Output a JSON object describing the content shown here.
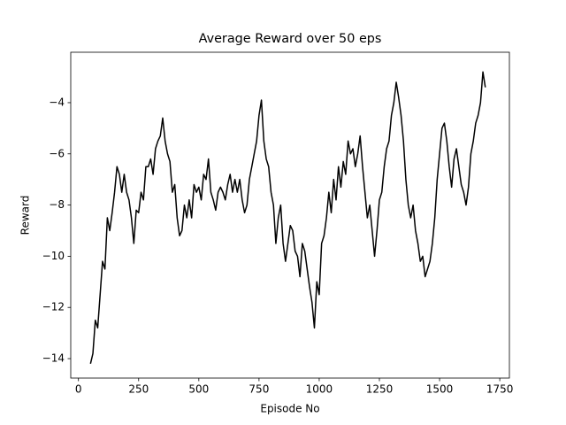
{
  "chart_data": {
    "type": "line",
    "title": "Average Reward over 50 eps",
    "xlabel": "Episode No",
    "ylabel": "Reward",
    "x": [
      50,
      60,
      70,
      80,
      90,
      100,
      110,
      120,
      130,
      140,
      150,
      160,
      170,
      180,
      190,
      200,
      210,
      220,
      230,
      240,
      250,
      260,
      270,
      280,
      290,
      300,
      310,
      320,
      330,
      340,
      350,
      360,
      370,
      380,
      390,
      400,
      410,
      420,
      430,
      440,
      450,
      460,
      470,
      480,
      490,
      500,
      510,
      520,
      530,
      540,
      550,
      560,
      570,
      580,
      590,
      600,
      610,
      620,
      630,
      640,
      650,
      660,
      670,
      680,
      690,
      700,
      710,
      720,
      730,
      740,
      750,
      760,
      770,
      780,
      790,
      800,
      810,
      820,
      830,
      840,
      850,
      860,
      870,
      880,
      890,
      900,
      910,
      920,
      930,
      940,
      950,
      960,
      970,
      980,
      990,
      1000,
      1010,
      1020,
      1030,
      1040,
      1050,
      1060,
      1070,
      1080,
      1090,
      1100,
      1110,
      1120,
      1130,
      1140,
      1150,
      1160,
      1170,
      1180,
      1190,
      1200,
      1210,
      1220,
      1230,
      1240,
      1250,
      1260,
      1270,
      1280,
      1290,
      1300,
      1310,
      1320,
      1330,
      1340,
      1350,
      1360,
      1370,
      1380,
      1390,
      1400,
      1410,
      1420,
      1430,
      1440,
      1450,
      1460,
      1470,
      1480,
      1490,
      1500,
      1510,
      1520,
      1530,
      1540,
      1550,
      1560,
      1570,
      1580,
      1590,
      1600,
      1610,
      1620,
      1630,
      1640,
      1650,
      1660,
      1670,
      1680,
      1690
    ],
    "series": [
      {
        "color": "#000000",
        "values": [
          -14.2,
          -13.8,
          -12.5,
          -12.8,
          -11.5,
          -10.2,
          -10.5,
          -8.5,
          -9.0,
          -8.3,
          -7.5,
          -6.5,
          -6.8,
          -7.5,
          -6.8,
          -7.5,
          -7.8,
          -8.5,
          -9.5,
          -8.2,
          -8.3,
          -7.5,
          -7.8,
          -6.5,
          -6.5,
          -6.2,
          -6.8,
          -5.8,
          -5.5,
          -5.3,
          -4.6,
          -5.5,
          -6.0,
          -6.3,
          -7.5,
          -7.2,
          -8.5,
          -9.2,
          -9.0,
          -8.0,
          -8.5,
          -7.8,
          -8.5,
          -7.2,
          -7.5,
          -7.3,
          -7.8,
          -6.8,
          -7.0,
          -6.2,
          -7.5,
          -7.8,
          -8.2,
          -7.5,
          -7.3,
          -7.5,
          -7.8,
          -7.2,
          -6.8,
          -7.5,
          -7.0,
          -7.5,
          -7.0,
          -7.8,
          -8.3,
          -8.0,
          -7.0,
          -6.5,
          -6.0,
          -5.5,
          -4.5,
          -3.9,
          -5.5,
          -6.2,
          -6.5,
          -7.5,
          -8.0,
          -9.5,
          -8.5,
          -8.0,
          -9.5,
          -10.2,
          -9.5,
          -8.8,
          -9.0,
          -9.8,
          -10.0,
          -10.8,
          -9.5,
          -9.8,
          -10.5,
          -11.2,
          -11.8,
          -12.8,
          -11.0,
          -11.5,
          -9.5,
          -9.2,
          -8.5,
          -7.5,
          -8.3,
          -7.0,
          -7.8,
          -6.5,
          -7.3,
          -6.3,
          -6.8,
          -5.5,
          -6.0,
          -5.8,
          -6.5,
          -6.0,
          -5.3,
          -6.5,
          -7.5,
          -8.5,
          -8.0,
          -9.0,
          -10.0,
          -9.0,
          -7.8,
          -7.5,
          -6.5,
          -5.8,
          -5.5,
          -4.5,
          -4.0,
          -3.2,
          -3.8,
          -4.5,
          -5.5,
          -7.0,
          -8.0,
          -8.5,
          -8.0,
          -9.0,
          -9.5,
          -10.2,
          -10.0,
          -10.8,
          -10.5,
          -10.2,
          -9.5,
          -8.5,
          -7.0,
          -6.0,
          -5.0,
          -4.8,
          -5.5,
          -6.5,
          -7.3,
          -6.2,
          -5.8,
          -6.5,
          -7.2,
          -7.5,
          -8.0,
          -7.3,
          -6.0,
          -5.5,
          -4.8,
          -4.5,
          -4.0,
          -2.8,
          -3.4
        ]
      }
    ],
    "xlim": [
      -32,
      1790
    ],
    "xticks": [
      0,
      250,
      500,
      750,
      1000,
      1250,
      1500,
      1750
    ],
    "ylim": [
      -14.76,
      -2.03
    ],
    "yticks": [
      {
        "value": -14,
        "label": "−14"
      },
      {
        "value": -12,
        "label": "−12"
      },
      {
        "value": -10,
        "label": "−10"
      },
      {
        "value": -8,
        "label": "−8"
      },
      {
        "value": -6,
        "label": "−6"
      },
      {
        "value": -4,
        "label": "−4"
      }
    ],
    "grid": false
  }
}
